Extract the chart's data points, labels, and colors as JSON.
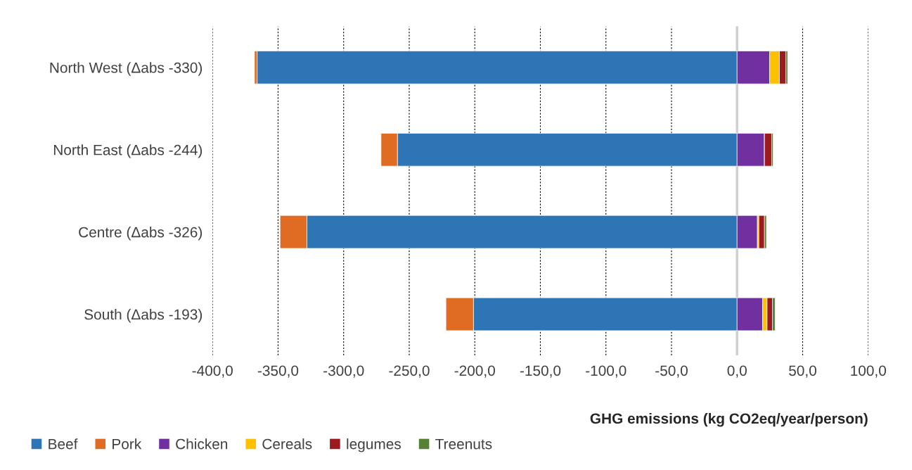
{
  "chart_data": {
    "type": "bar",
    "orientation": "horizontal",
    "stacked": true,
    "categories": [
      "North West (Δabs -330)",
      "North East (Δabs -244)",
      "Centre (Δabs -326)",
      "South (Δabs -193)"
    ],
    "series": [
      {
        "name": "Beef",
        "color": "#2e75b6",
        "values": [
          -366,
          -259,
          -328,
          -201
        ]
      },
      {
        "name": "Pork",
        "color": "#e06c24",
        "values": [
          -2,
          -12.5,
          -20.5,
          -21
        ]
      },
      {
        "name": "Chicken",
        "color": "#7030a0",
        "values": [
          24.8,
          20.9,
          15.5,
          19.5
        ]
      },
      {
        "name": "Cereals",
        "color": "#ffc000",
        "values": [
          7.5,
          0,
          1.1,
          3.4
        ]
      },
      {
        "name": "legumes",
        "color": "#9b1b1e",
        "values": [
          4.9,
          5.5,
          4.3,
          4.1
        ]
      },
      {
        "name": "Treenuts",
        "color": "#548235",
        "values": [
          1.4,
          1.1,
          1.5,
          2.0
        ]
      }
    ],
    "xlabel": "GHG emissions (kg CO2eq/year/person)",
    "xlim": [
      -400,
      100
    ],
    "xticks": [
      {
        "value": -400,
        "label": "-400,0"
      },
      {
        "value": -350,
        "label": "-350,0"
      },
      {
        "value": -300,
        "label": "-300,0"
      },
      {
        "value": -250,
        "label": "-250,0"
      },
      {
        "value": -200,
        "label": "-200,0"
      },
      {
        "value": -150,
        "label": "-150,0"
      },
      {
        "value": -100,
        "label": "-100,0"
      },
      {
        "value": -50,
        "label": "-50,0"
      },
      {
        "value": 0,
        "label": "0,0"
      },
      {
        "value": 50,
        "label": "50,0"
      },
      {
        "value": 100,
        "label": "100,0"
      }
    ],
    "grid": "x",
    "legend": "bottom"
  }
}
